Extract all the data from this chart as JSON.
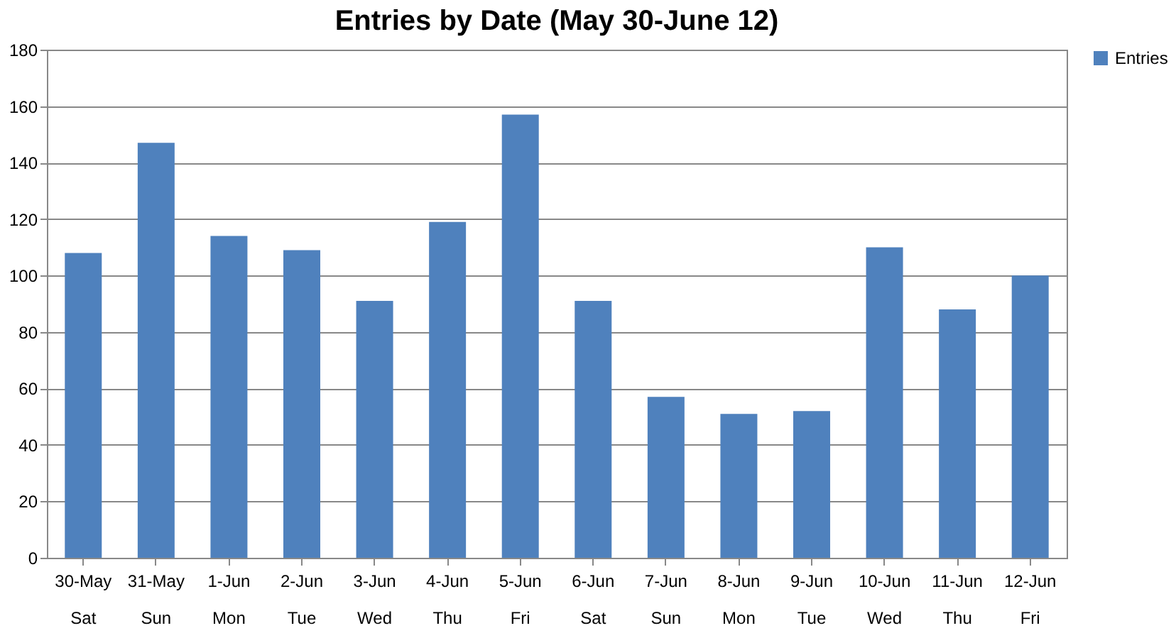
{
  "chart_data": {
    "type": "bar",
    "title": "Entries by Date (May 30-June 12)",
    "categories": [
      "30-May\nSat",
      "31-May\nSun",
      "1-Jun\nMon",
      "2-Jun\nTue",
      "3-Jun\nWed",
      "4-Jun\nThu",
      "5-Jun\nFri",
      "6-Jun\nSat",
      "7-Jun\nSun",
      "8-Jun\nMon",
      "9-Jun\nTue",
      "10-Jun\nWed",
      "11-Jun\nThu",
      "12-Jun\nFri"
    ],
    "series": [
      {
        "name": "Entries",
        "color": "#4f81bd",
        "values": [
          108,
          147,
          114,
          109,
          91,
          119,
          157,
          91,
          57,
          51,
          52,
          110,
          88,
          100
        ]
      }
    ],
    "ylim": [
      0,
      180
    ],
    "yticks": [
      0,
      20,
      40,
      60,
      80,
      100,
      120,
      140,
      160,
      180
    ],
    "grid": "y",
    "legend": "right"
  }
}
